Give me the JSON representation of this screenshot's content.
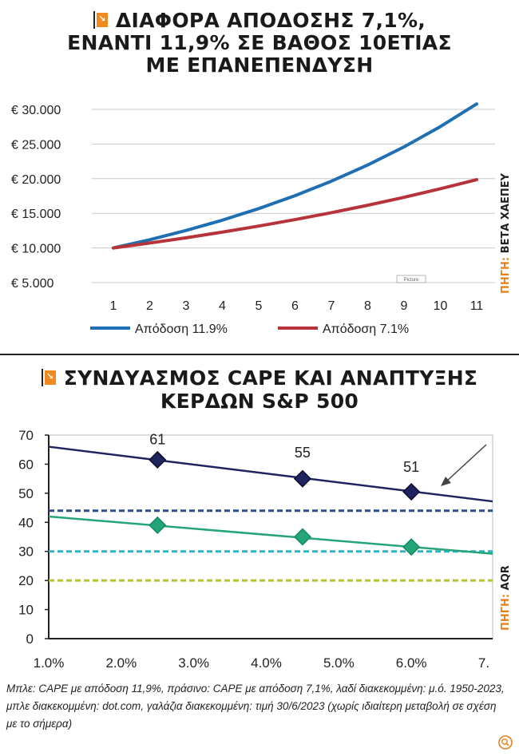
{
  "chart1": {
    "title_lines": [
      "ΔΙΑΦΟΡΑ ΑΠΟΔΟΣΗΣ 7,1%,",
      "ΕΝΑΝΤΙ 11,9% ΣΕ ΒΑΘΟΣ 10ΕΤΙΑΣ",
      "ΜΕ ΕΠΑΝΕΠΕΝΔΥΣΗ"
    ],
    "source_prefix": "ΠΗΓΗ:",
    "source": "ΒΕΤΑ ΧΑΕΠΕΥ",
    "watermark": "Picture"
  },
  "chart2": {
    "title_lines": [
      "ΣΥΝΔΥΑΣΜΟΣ CAPE ΚΑΙ ΑΝΑΠΤΥΞΗΣ",
      "ΚΕΡΔΩΝ S&P 500"
    ],
    "source_prefix": "ΠΗΓΗ:",
    "source": "AQR"
  },
  "caption": "Μπλε: CAPE με απόδοση 11,9%, πράσινο: CAPE με απόδοση 7,1%, λαδί διακεκομμένη: μ.ό. 1950-2023, μπλε διακεκομμένη: dot.com, γαλάζια διακεκομμένη: τιμή 30/6/2023 (χωρίς ιδιαίτερη μεταβολή σε σχέση με το σήμερα)",
  "colors": {
    "blue": "#1f6fb2",
    "red": "#b7333a",
    "navy": "#1f2460",
    "green": "#23a47a",
    "olive": "#b5c42a",
    "cyan": "#2fb3c9",
    "orange": "#f08a1e"
  },
  "icons": {
    "logo": "orange-arrow-logo",
    "zoom": "zoom-icon"
  },
  "chart_data": [
    {
      "type": "line",
      "x": [
        1,
        2,
        3,
        4,
        5,
        6,
        7,
        8,
        9,
        10,
        11
      ],
      "yticks": [
        "€ 5.000",
        "€ 10.000",
        "€ 15.000",
        "€ 20.000",
        "€ 25.000",
        "€ 30.000"
      ],
      "ylim": [
        5000,
        30000
      ],
      "grid": true,
      "legend_placement": "bottom",
      "series": [
        {
          "name": "Απόδοση 11.9%",
          "color": "#1f6fb2",
          "values": [
            10000,
            11190,
            12522,
            14012,
            15679,
            17545,
            19633,
            21970,
            24584,
            27510,
            30783
          ]
        },
        {
          "name": "Απόδοση 7.1%",
          "color": "#b7333a",
          "values": [
            10000,
            10710,
            11470,
            12285,
            13157,
            14091,
            15091,
            16163,
            17310,
            18539,
            19855
          ]
        }
      ]
    },
    {
      "type": "line",
      "x": [
        1.0,
        2.0,
        3.0,
        4.0,
        5.0,
        6.0,
        7.0
      ],
      "xticks": [
        "1.0%",
        "2.0%",
        "3.0%",
        "4.0%",
        "5.0%",
        "6.0%",
        "7."
      ],
      "yticks": [
        "0",
        "10",
        "20",
        "30",
        "40",
        "50",
        "60",
        "70"
      ],
      "ylim": [
        0,
        70
      ],
      "xlim": [
        1.0,
        7.0
      ],
      "series": [
        {
          "color": "#1f2460",
          "line": [
            [
              1.0,
              66
            ],
            [
              7.0,
              47.5
            ]
          ],
          "markers": [
            [
              2.5,
              61.5
            ],
            [
              4.5,
              55
            ],
            [
              6.0,
              50.5
            ]
          ]
        },
        {
          "color": "#23a47a",
          "line": [
            [
              1.0,
              42
            ],
            [
              7.0,
              29.5
            ]
          ],
          "markers": [
            [
              2.5,
              39
            ],
            [
              4.5,
              35
            ],
            [
              6.0,
              31.5
            ]
          ]
        }
      ],
      "reference_lines": [
        {
          "color": "#2b4f8c",
          "y": 44
        },
        {
          "color": "#2fb3c9",
          "y": 30
        },
        {
          "color": "#b5c42a",
          "y": 20
        }
      ],
      "annotations": [
        {
          "text": "61",
          "x": 2.5,
          "y": 68.5
        },
        {
          "text": "55",
          "x": 4.5,
          "y": 64
        },
        {
          "text": "51",
          "x": 6.0,
          "y": 59
        }
      ]
    }
  ]
}
